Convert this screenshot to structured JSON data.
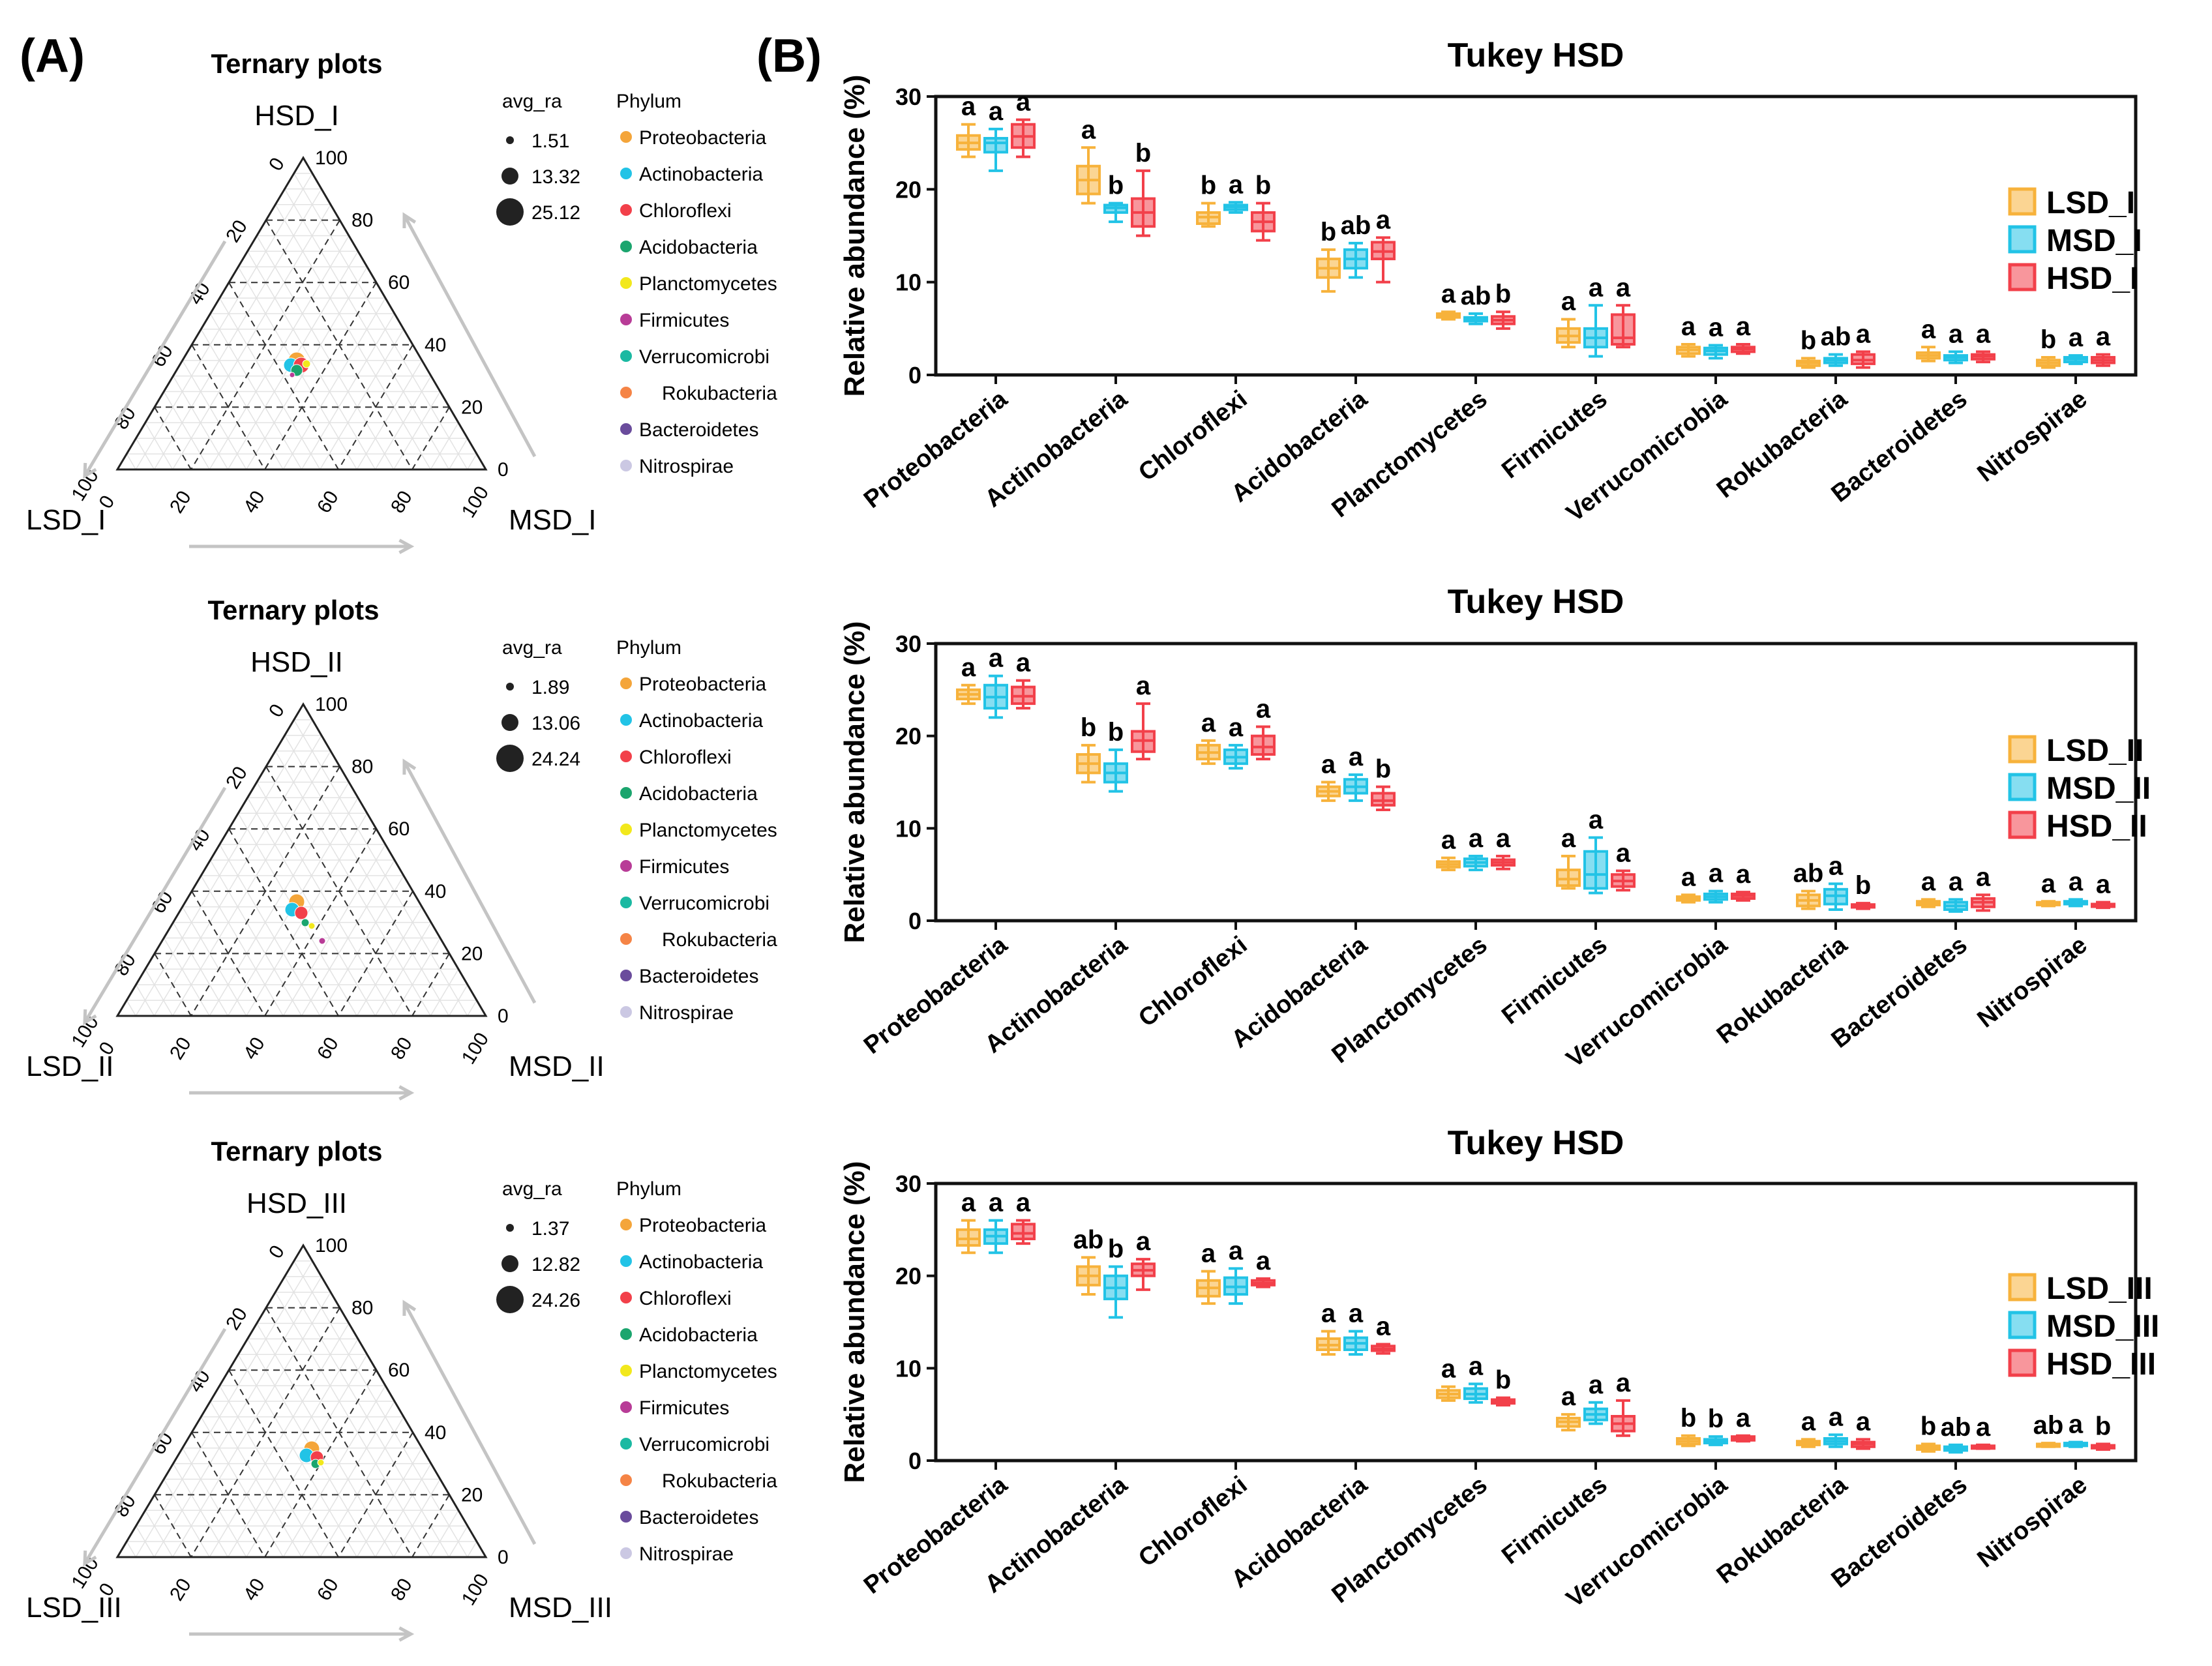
{
  "panel_a_label": "(A)",
  "panel_b_label": "(B)",
  "ternary_plots": [
    {
      "title": "Ternary plots",
      "top_label": "HSD_I",
      "left_label": "LSD_I",
      "right_label": "MSD_I",
      "ticks": [
        "0",
        "20",
        "40",
        "60",
        "80",
        "100"
      ],
      "size_legend_title": "avg_ra",
      "size_values": [
        "1.51",
        "13.32",
        "25.12"
      ],
      "phylum_legend_title": "Phylum"
    },
    {
      "title": "Ternary plots",
      "top_label": "HSD_II",
      "left_label": "LSD_II",
      "right_label": "MSD_II",
      "ticks": [
        "0",
        "20",
        "40",
        "60",
        "80",
        "100"
      ],
      "size_legend_title": "avg_ra",
      "size_values": [
        "1.89",
        "13.06",
        "24.24"
      ],
      "phylum_legend_title": "Phylum"
    },
    {
      "title": "Ternary plots",
      "top_label": "HSD_III",
      "left_label": "LSD_III",
      "right_label": "MSD_III",
      "ticks": [
        "0",
        "20",
        "40",
        "60",
        "80",
        "100"
      ],
      "size_legend_title": "avg_ra",
      "size_values": [
        "1.37",
        "12.82",
        "24.26"
      ],
      "phylum_legend_title": "Phylum"
    }
  ],
  "phyla": [
    {
      "name": "Proteobacteria",
      "color": "#F4A53A"
    },
    {
      "name": "Actinobacteria",
      "color": "#22C3E6"
    },
    {
      "name": "Chloroflexi",
      "color": "#F2404A"
    },
    {
      "name": "Acidobacteria",
      "color": "#1BA56E"
    },
    {
      "name": "Planctomycetes",
      "color": "#F2E81C"
    },
    {
      "name": "Firmicutes",
      "color": "#B83C97"
    },
    {
      "name": "Verrucomicrobi",
      "color": "#1BB9A2"
    },
    {
      "name": "Rokubacteria",
      "color": "#F58446"
    },
    {
      "name": "Bacteroidetes",
      "color": "#6A4C9C"
    },
    {
      "name": "Nitrospirae",
      "color": "#CBC8E3"
    }
  ],
  "chart_data": [
    {
      "type": "box",
      "title": "Tukey HSD",
      "ylabel": "Relative abundance (%)",
      "ylim": [
        0,
        30
      ],
      "yticks": [
        "0",
        "10",
        "20",
        "30"
      ],
      "categories": [
        "Proteobacteria",
        "Actinobacteria",
        "Chloroflexi",
        "Acidobacteria",
        "Planctomycetes",
        "Firmicutes",
        "Verrucomicrobia",
        "Rokubacteria",
        "Bacteroidetes",
        "Nitrospirae"
      ],
      "series": [
        {
          "name": "LSD_I",
          "color": "#F7B23B",
          "boxes": [
            [
              23.5,
              24.3,
              25,
              25.8,
              27
            ],
            [
              18.5,
              19.5,
              21,
              22.5,
              24.5
            ],
            [
              16,
              16.3,
              17,
              17.5,
              18.5
            ],
            [
              9,
              10.5,
              11.5,
              12.5,
              13.5
            ],
            [
              6,
              6.2,
              6.4,
              6.6,
              6.8
            ],
            [
              3,
              3.5,
              4.2,
              5,
              6
            ],
            [
              2,
              2.3,
              2.7,
              3,
              3.3
            ],
            [
              0.8,
              1,
              1.3,
              1.5,
              1.8
            ],
            [
              1.5,
              1.8,
              2.1,
              2.4,
              3
            ],
            [
              0.8,
              1,
              1.3,
              1.6,
              1.9
            ]
          ]
        },
        {
          "name": "MSD_I",
          "color": "#22C3E6",
          "boxes": [
            [
              22,
              24,
              25,
              25.5,
              26.5
            ],
            [
              16.5,
              17.5,
              18,
              18.3,
              18.5
            ],
            [
              17.5,
              17.8,
              18.1,
              18.3,
              18.6
            ],
            [
              10.5,
              11.5,
              12.5,
              13.5,
              14.2
            ],
            [
              5.5,
              5.8,
              6,
              6.2,
              6.6
            ],
            [
              2,
              3,
              4,
              5,
              7.5
            ],
            [
              1.8,
              2.2,
              2.6,
              2.9,
              3.2
            ],
            [
              1,
              1.3,
              1.6,
              1.8,
              2.2
            ],
            [
              1.3,
              1.6,
              1.9,
              2.1,
              2.5
            ],
            [
              1.2,
              1.4,
              1.7,
              1.9,
              2.1
            ]
          ]
        },
        {
          "name": "HSD_I",
          "color": "#F2404A",
          "boxes": [
            [
              23.5,
              24.5,
              25.7,
              27,
              27.5
            ],
            [
              15,
              16,
              17.5,
              19,
              22
            ],
            [
              14.5,
              15.5,
              16.5,
              17.5,
              18.5
            ],
            [
              10,
              12.5,
              13.3,
              14.3,
              14.8
            ],
            [
              5,
              5.5,
              5.9,
              6.3,
              6.8
            ],
            [
              3,
              3.3,
              4,
              6.5,
              7.5
            ],
            [
              2.3,
              2.5,
              2.8,
              3,
              3.3
            ],
            [
              0.8,
              1.2,
              1.6,
              2.2,
              2.5
            ],
            [
              1.4,
              1.7,
              2,
              2.2,
              2.5
            ],
            [
              1,
              1.3,
              1.6,
              1.9,
              2.2
            ]
          ]
        }
      ],
      "letters": [
        [
          "a",
          "a",
          "a"
        ],
        [
          "a",
          "b",
          "b"
        ],
        [
          "b",
          "a",
          "b"
        ],
        [
          "b",
          "ab",
          "a"
        ],
        [
          "a",
          "ab",
          "b"
        ],
        [
          "a",
          "a",
          "a"
        ],
        [
          "a",
          "a",
          "a"
        ],
        [
          "b",
          "ab",
          "a"
        ],
        [
          "a",
          "a",
          "a"
        ],
        [
          "b",
          "a",
          "a"
        ]
      ],
      "legend": [
        "LSD_I",
        "MSD_I",
        "HSD_I"
      ]
    },
    {
      "type": "box",
      "title": "Tukey HSD",
      "ylabel": "Relative abundance (%)",
      "ylim": [
        0,
        30
      ],
      "yticks": [
        "0",
        "10",
        "20",
        "30"
      ],
      "categories": [
        "Proteobacteria",
        "Actinobacteria",
        "Chloroflexi",
        "Acidobacteria",
        "Planctomycetes",
        "Firmicutes",
        "Verrucomicrobia",
        "Rokubacteria",
        "Bacteroidetes",
        "Nitrospirae"
      ],
      "series": [
        {
          "name": "LSD_II",
          "color": "#F7B23B",
          "boxes": [
            [
              23.5,
              24,
              24.5,
              25,
              25.5
            ],
            [
              15,
              16,
              17,
              18,
              19
            ],
            [
              17,
              17.5,
              18.2,
              19,
              19.5
            ],
            [
              13,
              13.5,
              14,
              14.5,
              15
            ],
            [
              5.5,
              5.8,
              6.1,
              6.4,
              6.8
            ],
            [
              3.5,
              3.8,
              4.5,
              5.5,
              7
            ],
            [
              2,
              2.2,
              2.4,
              2.6,
              2.8
            ],
            [
              1.3,
              1.6,
              2.2,
              2.8,
              3.2
            ],
            [
              1.5,
              1.7,
              1.9,
              2.1,
              2.3
            ],
            [
              1.6,
              1.7,
              1.9,
              2,
              2.1
            ]
          ]
        },
        {
          "name": "MSD_II",
          "color": "#22C3E6",
          "boxes": [
            [
              22,
              23,
              24.2,
              25.5,
              26.5
            ],
            [
              14,
              15,
              16,
              17,
              18.5
            ],
            [
              16.5,
              17,
              17.7,
              18.5,
              19
            ],
            [
              13,
              13.8,
              14.5,
              15.3,
              15.8
            ],
            [
              5.5,
              5.9,
              6.3,
              6.7,
              7
            ],
            [
              3,
              3.5,
              5,
              7.5,
              9
            ],
            [
              2,
              2.3,
              2.6,
              2.9,
              3.2
            ],
            [
              1.2,
              1.8,
              2.7,
              3.4,
              4
            ],
            [
              1,
              1.2,
              1.6,
              2,
              2.3
            ],
            [
              1.6,
              1.8,
              1.9,
              2.1,
              2.3
            ]
          ]
        },
        {
          "name": "HSD_II",
          "color": "#F2404A",
          "boxes": [
            [
              23,
              23.5,
              24.3,
              25.3,
              26
            ],
            [
              17.5,
              18.3,
              19.5,
              20.5,
              23.5
            ],
            [
              17.5,
              18,
              18.8,
              20,
              21
            ],
            [
              12,
              12.5,
              13,
              13.8,
              14.5
            ],
            [
              5.6,
              6,
              6.3,
              6.6,
              7
            ],
            [
              3.3,
              3.7,
              4.3,
              5,
              5.4
            ],
            [
              2.2,
              2.4,
              2.7,
              2.9,
              3.1
            ],
            [
              1.3,
              1.45,
              1.6,
              1.75,
              1.9
            ],
            [
              1.1,
              1.5,
              2,
              2.4,
              2.8
            ],
            [
              1.4,
              1.6,
              1.7,
              1.8,
              2
            ]
          ]
        }
      ],
      "letters": [
        [
          "a",
          "a",
          "a"
        ],
        [
          "b",
          "b",
          "a"
        ],
        [
          "a",
          "a",
          "a"
        ],
        [
          "a",
          "a",
          "b"
        ],
        [
          "a",
          "a",
          "a"
        ],
        [
          "a",
          "a",
          "a"
        ],
        [
          "a",
          "a",
          "a"
        ],
        [
          "ab",
          "a",
          "b"
        ],
        [
          "a",
          "a",
          "a"
        ],
        [
          "a",
          "a",
          "a"
        ]
      ],
      "legend": [
        "LSD_II",
        "MSD_II",
        "HSD_II"
      ]
    },
    {
      "type": "box",
      "title": "Tukey HSD",
      "ylabel": "Relative abundance (%)",
      "ylim": [
        0,
        30
      ],
      "yticks": [
        "0",
        "10",
        "20",
        "30"
      ],
      "categories": [
        "Proteobacteria",
        "Actinobacteria",
        "Chloroflexi",
        "Acidobacteria",
        "Planctomycetes",
        "Firmicutes",
        "Verrucomicrobia",
        "Rokubacteria",
        "Bacteroidetes",
        "Nitrospirae"
      ],
      "series": [
        {
          "name": "LSD_III",
          "color": "#F7B23B",
          "boxes": [
            [
              22.5,
              23.3,
              24,
              25,
              26
            ],
            [
              18,
              19,
              20,
              21,
              22
            ],
            [
              17,
              17.8,
              18.7,
              19.5,
              20.5
            ],
            [
              11.5,
              12,
              12.5,
              13.2,
              14
            ],
            [
              6.5,
              6.8,
              7.2,
              7.6,
              8
            ],
            [
              3.3,
              3.7,
              4.2,
              4.6,
              5
            ],
            [
              1.6,
              1.8,
              2.1,
              2.4,
              2.7
            ],
            [
              1.5,
              1.7,
              1.9,
              2.1,
              2.3
            ],
            [
              1,
              1.2,
              1.4,
              1.6,
              1.8
            ],
            [
              1.5,
              1.6,
              1.7,
              1.8,
              1.9
            ]
          ]
        },
        {
          "name": "MSD_III",
          "color": "#22C3E6",
          "boxes": [
            [
              22.5,
              23.5,
              24.3,
              25,
              26
            ],
            [
              15.5,
              17.5,
              18.7,
              20,
              21
            ],
            [
              17,
              18,
              18.8,
              19.8,
              20.8
            ],
            [
              11.5,
              12,
              12.7,
              13.3,
              14
            ],
            [
              6.3,
              6.7,
              7.2,
              7.8,
              8.3
            ],
            [
              4,
              4.4,
              5,
              5.6,
              6.3
            ],
            [
              1.7,
              1.9,
              2.1,
              2.3,
              2.6
            ],
            [
              1.5,
              1.8,
              2.1,
              2.4,
              2.8
            ],
            [
              0.9,
              1.1,
              1.3,
              1.5,
              1.7
            ],
            [
              1.5,
              1.6,
              1.75,
              1.9,
              2
            ]
          ]
        },
        {
          "name": "HSD_III",
          "color": "#F2404A",
          "boxes": [
            [
              23.5,
              24,
              24.6,
              25.6,
              26
            ],
            [
              18.5,
              20,
              20.6,
              21.3,
              21.8
            ],
            [
              18.8,
              19,
              19.2,
              19.5,
              19.7
            ],
            [
              11.6,
              11.9,
              12.1,
              12.4,
              12.6
            ],
            [
              6,
              6.2,
              6.4,
              6.6,
              6.8
            ],
            [
              2.7,
              3.2,
              4,
              4.8,
              6.5
            ],
            [
              2.1,
              2.2,
              2.4,
              2.6,
              2.7
            ],
            [
              1.3,
              1.5,
              1.8,
              2,
              2.3
            ],
            [
              1.3,
              1.4,
              1.5,
              1.6,
              1.7
            ],
            [
              1.2,
              1.35,
              1.5,
              1.65,
              1.8
            ]
          ]
        }
      ],
      "letters": [
        [
          "a",
          "a",
          "a"
        ],
        [
          "ab",
          "b",
          "a"
        ],
        [
          "a",
          "a",
          "a"
        ],
        [
          "a",
          "a",
          "a"
        ],
        [
          "a",
          "a",
          "b"
        ],
        [
          "a",
          "a",
          "a"
        ],
        [
          "b",
          "b",
          "a"
        ],
        [
          "a",
          "a",
          "a"
        ],
        [
          "b",
          "ab",
          "a"
        ],
        [
          "ab",
          "a",
          "b"
        ]
      ],
      "legend": [
        "LSD_III",
        "MSD_III",
        "HSD_III"
      ]
    }
  ]
}
